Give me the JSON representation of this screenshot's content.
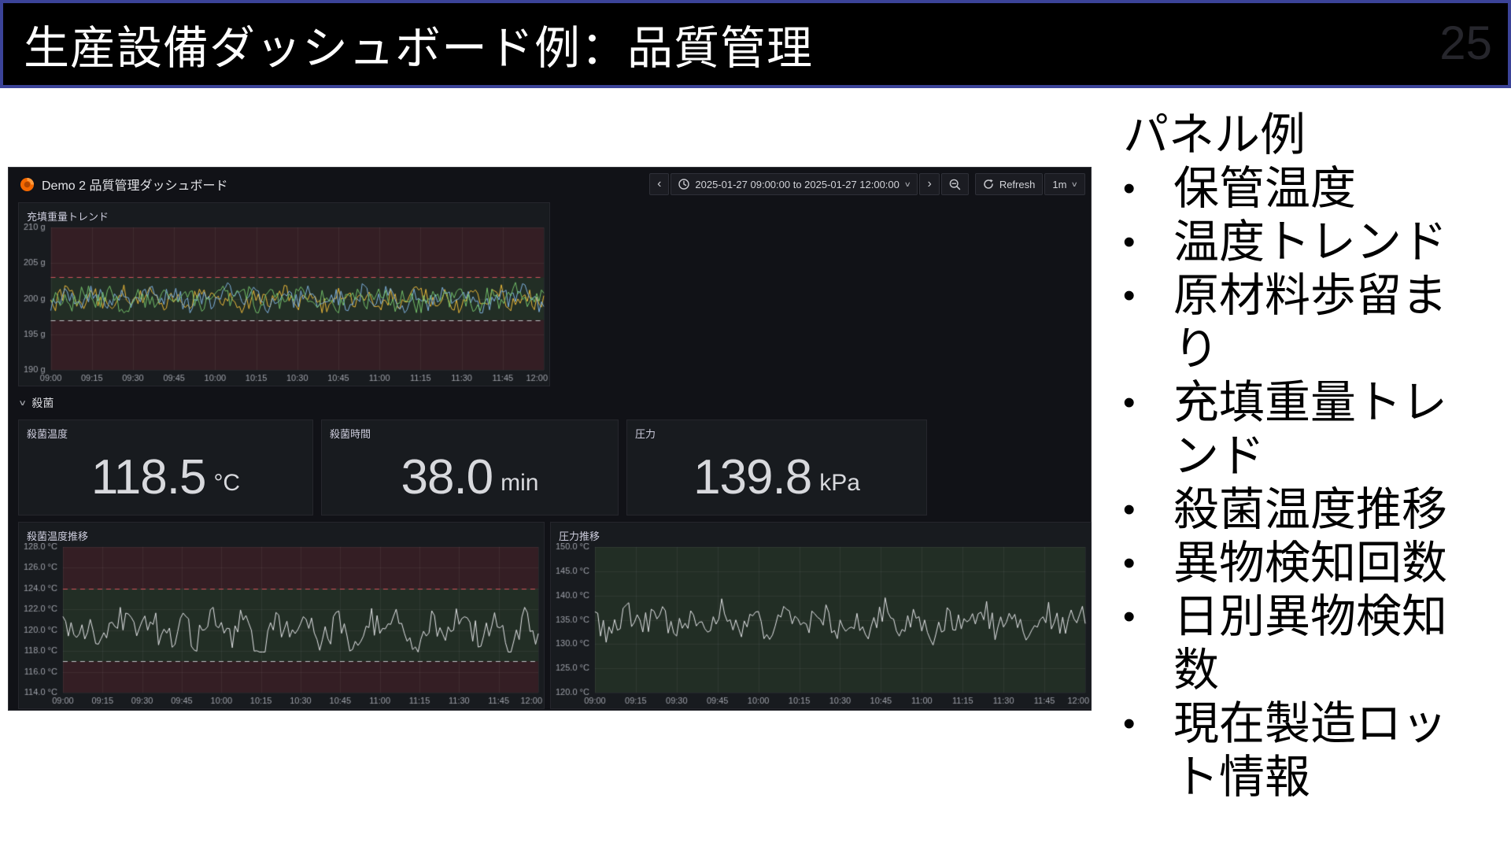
{
  "slide": {
    "title": "生産設備ダッシュボード例：品質管理",
    "page_number": "25"
  },
  "side_panel": {
    "heading": "パネル例",
    "bullet_glyph": "•",
    "bullets": [
      {
        "lines": [
          "保管温度"
        ]
      },
      {
        "lines": [
          "温度トレンド"
        ]
      },
      {
        "lines": [
          "原材料歩留ま",
          "り"
        ]
      },
      {
        "lines": [
          "充填重量トレ",
          "ンド"
        ]
      },
      {
        "lines": [
          "殺菌温度推移"
        ]
      },
      {
        "lines": [
          "異物検知回数"
        ]
      },
      {
        "lines": [
          "日別異物検知",
          "数"
        ]
      },
      {
        "lines": [
          "現在製造ロッ",
          "ト情報"
        ]
      }
    ]
  },
  "dashboard": {
    "title": "Demo 2 品質管理ダッシュボード",
    "toolbar": {
      "back": "‹",
      "time_range": "2025-01-27 09:00:00 to 2025-01-27 12:00:00",
      "forward": "›",
      "refresh_label": "Refresh",
      "interval": "1m"
    },
    "section_label": "殺菌",
    "stats": [
      {
        "title": "殺菌温度",
        "value": "118.5",
        "unit": "°C"
      },
      {
        "title": "殺菌時間",
        "value": "38.0",
        "unit": "min"
      },
      {
        "title": "圧力",
        "value": "139.8",
        "unit": "kPa"
      }
    ],
    "colors": {
      "background": "#111217",
      "panel": "#181b1f",
      "panel_border": "#25262c",
      "text": "#ccccdc",
      "axis_text": "#9da0a8",
      "stat_value": "#d8d9dd",
      "grafana_orange": "#f46800",
      "zone_red": "rgba(196,48,60,0.16)",
      "zone_green": "rgba(96,165,80,0.14)",
      "grid": "rgba(255,255,255,0.06)"
    }
  },
  "chart_data": [
    {
      "type": "line",
      "title": "充填重量トレンド",
      "ylabel": "",
      "xlabel": "",
      "ylim": [
        190,
        210
      ],
      "yticks": [
        190,
        195,
        200,
        205,
        210
      ],
      "ytick_labels": [
        "190 g",
        "195 g",
        "200 g",
        "205 g",
        "210 g"
      ],
      "xticks": [
        "09:00",
        "09:15",
        "09:30",
        "09:45",
        "10:00",
        "10:15",
        "10:30",
        "10:45",
        "11:00",
        "11:15",
        "11:30",
        "11:45",
        "12:00"
      ],
      "grid": true,
      "legend": false,
      "zones": [
        {
          "from": 203,
          "to": 210,
          "color": "red"
        },
        {
          "from": 197,
          "to": 203,
          "color": "green"
        },
        {
          "from": 190,
          "to": 197,
          "color": "red"
        }
      ],
      "thresholds": [
        {
          "value": 203,
          "color": "#d2555e"
        },
        {
          "value": 197,
          "color": "#c0c2c6"
        }
      ],
      "series": [
        {
          "color": "#EAB839",
          "mean": 200,
          "amplitude": 1.5,
          "min": 198.0,
          "max": 202.3,
          "points": 210,
          "seed": 3
        },
        {
          "color": "#7EB0DE",
          "mean": 200,
          "amplitude": 1.5,
          "min": 198.0,
          "max": 202.3,
          "points": 210,
          "seed": 8
        },
        {
          "color": "#73BF69",
          "mean": 200,
          "amplitude": 1.5,
          "min": 198.0,
          "max": 202.3,
          "points": 210,
          "seed": 5
        }
      ]
    },
    {
      "type": "line",
      "title": "殺菌温度推移",
      "ylabel": "",
      "xlabel": "",
      "ylim": [
        114,
        128
      ],
      "yticks": [
        114,
        116,
        118,
        120,
        122,
        124,
        126,
        128
      ],
      "ytick_labels": [
        "114.0 °C",
        "116.0 °C",
        "118.0 °C",
        "120.0 °C",
        "122.0 °C",
        "124.0 °C",
        "126.0 °C",
        "128.0 °C"
      ],
      "xticks": [
        "09:00",
        "09:15",
        "09:30",
        "09:45",
        "10:00",
        "10:15",
        "10:30",
        "10:45",
        "11:00",
        "11:15",
        "11:30",
        "11:45",
        "12:00"
      ],
      "grid": true,
      "legend": false,
      "zones": [
        {
          "from": 124,
          "to": 128,
          "color": "red"
        },
        {
          "from": 117,
          "to": 124,
          "color": "green"
        },
        {
          "from": 114,
          "to": 117,
          "color": "red"
        }
      ],
      "thresholds": [
        {
          "value": 124,
          "color": "#d2555e"
        },
        {
          "value": 117,
          "color": "#c0c2c6"
        }
      ],
      "series": [
        {
          "color": "#e4e5e8",
          "mean": 120.1,
          "amplitude": 1.8,
          "min": 117.9,
          "max": 122.2,
          "points": 175,
          "seed": 7
        }
      ]
    },
    {
      "type": "line",
      "title": "圧力推移",
      "ylabel": "",
      "xlabel": "",
      "ylim": [
        120,
        150
      ],
      "yticks": [
        120,
        125,
        130,
        135,
        140,
        145,
        150
      ],
      "ytick_labels": [
        "120.0 °C",
        "125.0 °C",
        "130.0 °C",
        "135.0 °C",
        "140.0 °C",
        "145.0 °C",
        "150.0 °C"
      ],
      "xticks": [
        "09:00",
        "09:15",
        "09:30",
        "09:45",
        "10:00",
        "10:15",
        "10:30",
        "10:45",
        "11:00",
        "11:15",
        "11:30",
        "11:45",
        "12:00"
      ],
      "grid": true,
      "legend": false,
      "zones": [
        {
          "from": 120,
          "to": 150,
          "color": "green"
        }
      ],
      "thresholds": [],
      "series": [
        {
          "color": "#e4e5e8",
          "mean": 134.6,
          "amplitude": 3.4,
          "min": 129.8,
          "max": 140.2,
          "points": 175,
          "seed": 11
        }
      ]
    }
  ]
}
